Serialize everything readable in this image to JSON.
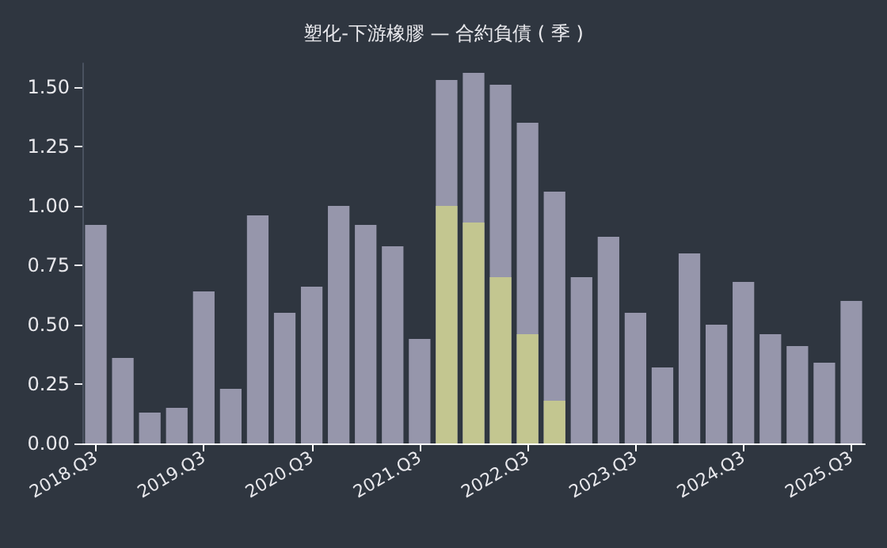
{
  "chart_data": {
    "type": "bar",
    "title": "塑化-下游橡膠 — 合約負債 ( 季 )",
    "categories": [
      "2018.Q3",
      null,
      null,
      null,
      "2019.Q3",
      null,
      null,
      null,
      "2020.Q3",
      null,
      null,
      null,
      "2021.Q3",
      null,
      null,
      null,
      "2022.Q3",
      null,
      null,
      null,
      "2023.Q3",
      null,
      null,
      null,
      "2024.Q3",
      null,
      null,
      null,
      "2025.Q3"
    ],
    "series": [
      {
        "color": "#9696ab",
        "values": [
          0.92,
          0.36,
          0.13,
          0.15,
          0.64,
          0.23,
          0.96,
          0.55,
          0.66,
          1.0,
          0.92,
          0.83,
          0.44,
          1.53,
          1.56,
          1.51,
          1.35,
          1.06,
          0.7,
          0.87,
          0.55,
          0.32,
          0.8,
          0.5,
          0.68,
          0.46,
          0.41,
          0.34,
          0.6
        ]
      },
      {
        "color": "#c3c690",
        "values": [
          null,
          null,
          null,
          null,
          null,
          null,
          null,
          null,
          null,
          null,
          null,
          null,
          null,
          1.0,
          0.93,
          0.7,
          0.46,
          0.18,
          null,
          null,
          null,
          null,
          null,
          null,
          null,
          null,
          null,
          null,
          null
        ]
      }
    ],
    "yticks": [
      {
        "value": 0,
        "label": "0.00"
      },
      {
        "value": 0.25,
        "label": "0.25"
      },
      {
        "value": 0.5,
        "label": "0.50"
      },
      {
        "value": 0.75,
        "label": "0.75"
      },
      {
        "value": 1.0,
        "label": "1.00"
      },
      {
        "value": 1.25,
        "label": "1.25"
      },
      {
        "value": 1.5,
        "label": "1.50"
      }
    ],
    "ylim": [
      0,
      1.6
    ],
    "grid": false
  }
}
